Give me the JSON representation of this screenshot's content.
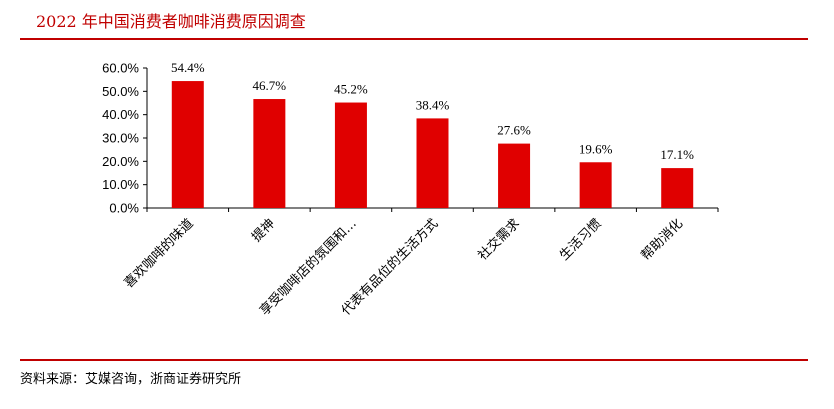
{
  "header": {
    "title": "2022 年中国消费者咖啡消费原因调查"
  },
  "footer": {
    "source": "资料来源：艾媒咨询，浙商证券研究所"
  },
  "colors": {
    "accent": "#c00000",
    "bar": "#e00000"
  },
  "chart_data": {
    "type": "bar",
    "categories": [
      "喜欢咖啡的味道",
      "提神",
      "享受咖啡店的氛围和…",
      "代表有品位的生活方式",
      "社交需求",
      "生活习惯",
      "帮助消化"
    ],
    "values": [
      54.4,
      46.7,
      45.2,
      38.4,
      27.6,
      19.6,
      17.1
    ],
    "value_labels": [
      "54.4%",
      "46.7%",
      "45.2%",
      "38.4%",
      "27.6%",
      "19.6%",
      "17.1%"
    ],
    "yticks": [
      "0.0%",
      "10.0%",
      "20.0%",
      "30.0%",
      "40.0%",
      "50.0%",
      "60.0%"
    ],
    "ylim": [
      0,
      60
    ],
    "grid": false,
    "legend": "none",
    "xlabel": "",
    "ylabel": ""
  }
}
